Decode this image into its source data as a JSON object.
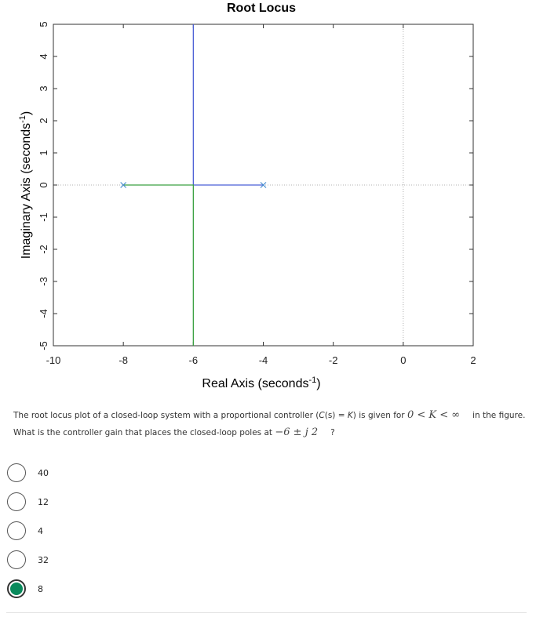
{
  "chart_data": {
    "type": "line",
    "title": "Root Locus",
    "xlabel": "Real Axis (seconds",
    "xlabel_sup": "-1",
    "xlabel_tail": ")",
    "ylabel": "Imaginary Axis (seconds",
    "ylabel_sup": "-1",
    "ylabel_tail": ")",
    "xlim": [
      -10,
      2
    ],
    "ylim": [
      -5,
      5
    ],
    "xticks": [
      "-10",
      "-8",
      "-6",
      "-4",
      "-2",
      "0",
      "2"
    ],
    "yticks": [
      "5",
      "4",
      "3",
      "2",
      "1",
      "0",
      "-1",
      "-2",
      "-3",
      "-4",
      "-5"
    ],
    "poles": [
      {
        "x": -8,
        "y": 0
      },
      {
        "x": -4,
        "y": 0
      }
    ],
    "series": [
      {
        "color": "#4b5fd6",
        "points": [
          [
            -4,
            0
          ],
          [
            -6,
            0
          ],
          [
            -6,
            5
          ]
        ]
      },
      {
        "color": "#3aa142",
        "points": [
          [
            -8,
            0
          ],
          [
            -6,
            0
          ],
          [
            -6,
            -5
          ]
        ]
      }
    ],
    "pole_color": "#4a8fd0",
    "grid_color": "#b0b0b0"
  },
  "question": {
    "part1": "The root locus plot of a closed-loop system with a proportional controller (",
    "part2": "C",
    "part3": "(s) =",
    "part4": "K",
    "part5": ") is given for",
    "math1": "0 < K < ∞",
    "part6": "in the figure.",
    "line2": "What is the controller gain that places the closed-loop poles at",
    "math2": "−6 ± j 2",
    "part7": "?"
  },
  "options": [
    {
      "label": "40",
      "selected": false
    },
    {
      "label": "12",
      "selected": false
    },
    {
      "label": "4",
      "selected": false
    },
    {
      "label": "32",
      "selected": false
    },
    {
      "label": "8",
      "selected": true
    }
  ],
  "colors": {
    "selected": "#0a8a5c"
  }
}
